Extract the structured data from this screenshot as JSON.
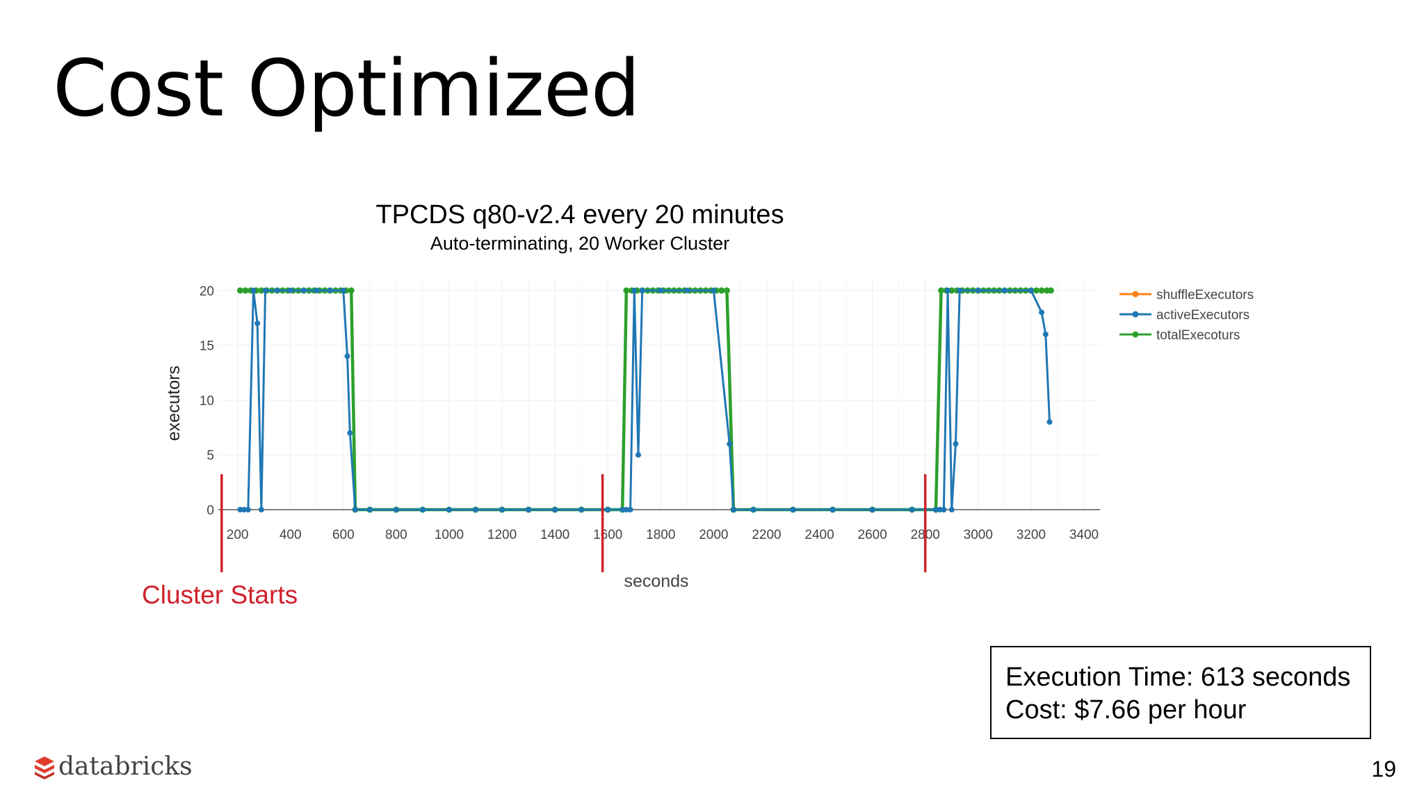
{
  "slide": {
    "title": "Cost Optimized",
    "page_number": "19",
    "logo_text": "databricks",
    "cluster_starts_label": "Cluster Starts",
    "info": {
      "execution_time": "Execution Time: 613 seconds",
      "cost": "Cost: $7.66 per hour"
    }
  },
  "colors": {
    "shuffle": "#ff7f0e",
    "active": "#1f77b4",
    "total": "#2ca02c",
    "marker_red": "#d0202a",
    "logo_red": "#e03c2e"
  },
  "chart_data": {
    "type": "line",
    "title": "TPCDS q80-v2.4 every 20 minutes",
    "subtitle": "Auto-terminating, 20 Worker Cluster",
    "xlabel": "seconds",
    "ylabel": "executors",
    "xlim": [
      130,
      3450
    ],
    "ylim": [
      0,
      21
    ],
    "xticks": [
      200,
      400,
      600,
      800,
      1000,
      1200,
      1400,
      1600,
      1800,
      2000,
      2200,
      2400,
      2600,
      2800,
      3000,
      3200,
      3400
    ],
    "yticks": [
      0,
      5,
      10,
      15,
      20
    ],
    "grid": true,
    "legend_position": "top-right",
    "cluster_start_markers": [
      140,
      1580,
      2800
    ],
    "series": [
      {
        "name": "shuffleExecutors",
        "color_key": "shuffle",
        "points": []
      },
      {
        "name": "activeExecutors",
        "color_key": "active",
        "points": [
          [
            210,
            0
          ],
          [
            225,
            0
          ],
          [
            240,
            0
          ],
          [
            260,
            20
          ],
          [
            275,
            17
          ],
          [
            290,
            0
          ],
          [
            305,
            20
          ],
          [
            350,
            20
          ],
          [
            400,
            20
          ],
          [
            450,
            20
          ],
          [
            500,
            20
          ],
          [
            550,
            20
          ],
          [
            600,
            20
          ],
          [
            615,
            14
          ],
          [
            625,
            7
          ],
          [
            645,
            0
          ],
          [
            700,
            0
          ],
          [
            800,
            0
          ],
          [
            900,
            0
          ],
          [
            1000,
            0
          ],
          [
            1100,
            0
          ],
          [
            1200,
            0
          ],
          [
            1300,
            0
          ],
          [
            1400,
            0
          ],
          [
            1500,
            0
          ],
          [
            1600,
            0
          ],
          [
            1655,
            0
          ],
          [
            1670,
            0
          ],
          [
            1685,
            0
          ],
          [
            1700,
            20
          ],
          [
            1715,
            5
          ],
          [
            1730,
            20
          ],
          [
            1800,
            20
          ],
          [
            1900,
            20
          ],
          [
            2000,
            20
          ],
          [
            2060,
            6
          ],
          [
            2075,
            0
          ],
          [
            2150,
            0
          ],
          [
            2300,
            0
          ],
          [
            2450,
            0
          ],
          [
            2600,
            0
          ],
          [
            2750,
            0
          ],
          [
            2840,
            0
          ],
          [
            2855,
            0
          ],
          [
            2870,
            0
          ],
          [
            2885,
            20
          ],
          [
            2900,
            0
          ],
          [
            2915,
            6
          ],
          [
            2930,
            20
          ],
          [
            3000,
            20
          ],
          [
            3100,
            20
          ],
          [
            3200,
            20
          ],
          [
            3240,
            18
          ],
          [
            3255,
            16
          ],
          [
            3270,
            8
          ]
        ]
      },
      {
        "name": "totalExecoturs",
        "color_key": "total",
        "points": [
          [
            210,
            20
          ],
          [
            230,
            20
          ],
          [
            250,
            20
          ],
          [
            270,
            20
          ],
          [
            290,
            20
          ],
          [
            310,
            20
          ],
          [
            330,
            20
          ],
          [
            350,
            20
          ],
          [
            370,
            20
          ],
          [
            390,
            20
          ],
          [
            410,
            20
          ],
          [
            430,
            20
          ],
          [
            450,
            20
          ],
          [
            470,
            20
          ],
          [
            490,
            20
          ],
          [
            510,
            20
          ],
          [
            530,
            20
          ],
          [
            550,
            20
          ],
          [
            570,
            20
          ],
          [
            590,
            20
          ],
          [
            610,
            20
          ],
          [
            630,
            20
          ],
          [
            645,
            0
          ],
          [
            700,
            0
          ],
          [
            800,
            0
          ],
          [
            900,
            0
          ],
          [
            1000,
            0
          ],
          [
            1100,
            0
          ],
          [
            1200,
            0
          ],
          [
            1300,
            0
          ],
          [
            1400,
            0
          ],
          [
            1500,
            0
          ],
          [
            1600,
            0
          ],
          [
            1655,
            0
          ],
          [
            1670,
            20
          ],
          [
            1690,
            20
          ],
          [
            1710,
            20
          ],
          [
            1730,
            20
          ],
          [
            1750,
            20
          ],
          [
            1770,
            20
          ],
          [
            1790,
            20
          ],
          [
            1810,
            20
          ],
          [
            1830,
            20
          ],
          [
            1850,
            20
          ],
          [
            1870,
            20
          ],
          [
            1890,
            20
          ],
          [
            1910,
            20
          ],
          [
            1930,
            20
          ],
          [
            1950,
            20
          ],
          [
            1970,
            20
          ],
          [
            1990,
            20
          ],
          [
            2010,
            20
          ],
          [
            2030,
            20
          ],
          [
            2050,
            20
          ],
          [
            2075,
            0
          ],
          [
            2150,
            0
          ],
          [
            2300,
            0
          ],
          [
            2450,
            0
          ],
          [
            2600,
            0
          ],
          [
            2750,
            0
          ],
          [
            2840,
            0
          ],
          [
            2860,
            20
          ],
          [
            2880,
            20
          ],
          [
            2900,
            20
          ],
          [
            2920,
            20
          ],
          [
            2940,
            20
          ],
          [
            2960,
            20
          ],
          [
            2980,
            20
          ],
          [
            3000,
            20
          ],
          [
            3020,
            20
          ],
          [
            3040,
            20
          ],
          [
            3060,
            20
          ],
          [
            3080,
            20
          ],
          [
            3100,
            20
          ],
          [
            3120,
            20
          ],
          [
            3140,
            20
          ],
          [
            3160,
            20
          ],
          [
            3180,
            20
          ],
          [
            3200,
            20
          ],
          [
            3220,
            20
          ],
          [
            3240,
            20
          ],
          [
            3260,
            20
          ],
          [
            3275,
            20
          ]
        ]
      }
    ]
  }
}
